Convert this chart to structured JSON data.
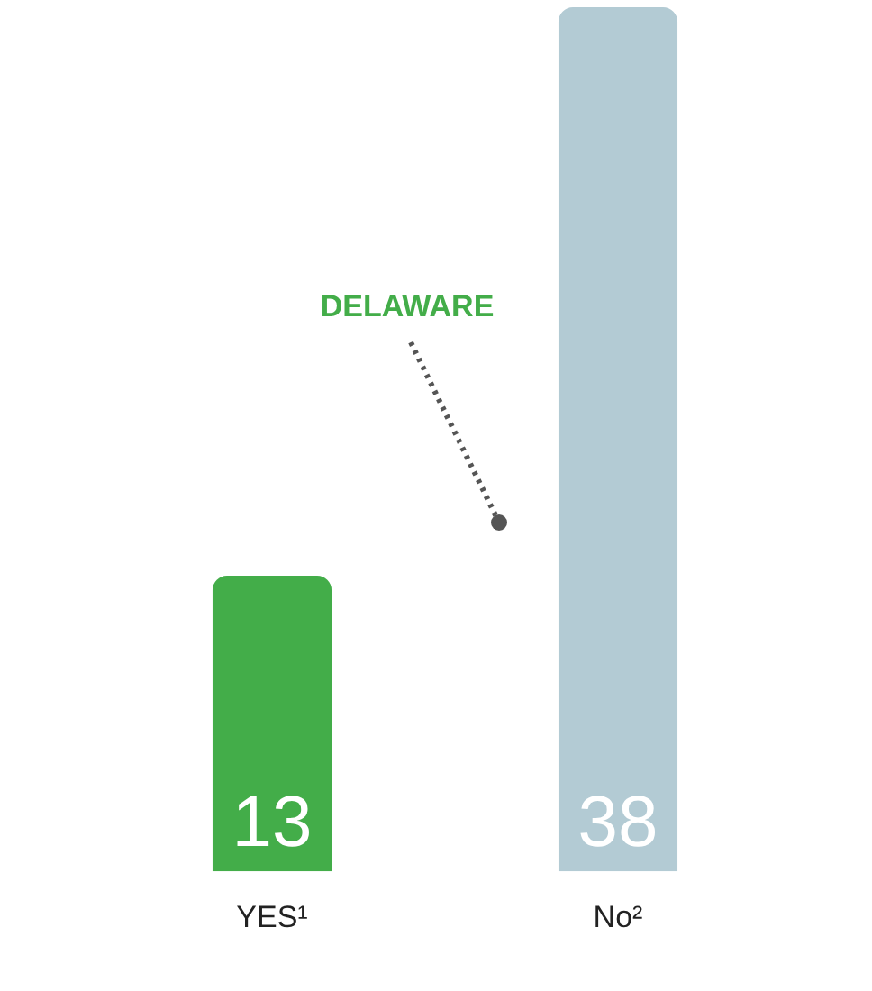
{
  "chart_data": {
    "type": "bar",
    "categories": [
      "YES¹",
      "No²"
    ],
    "values": [
      13,
      38
    ],
    "colors": [
      "#43ad49",
      "#b3cbd4"
    ],
    "data_labels": true,
    "grid": false,
    "legend": false,
    "annotations": [
      "DELAWARE"
    ]
  }
}
